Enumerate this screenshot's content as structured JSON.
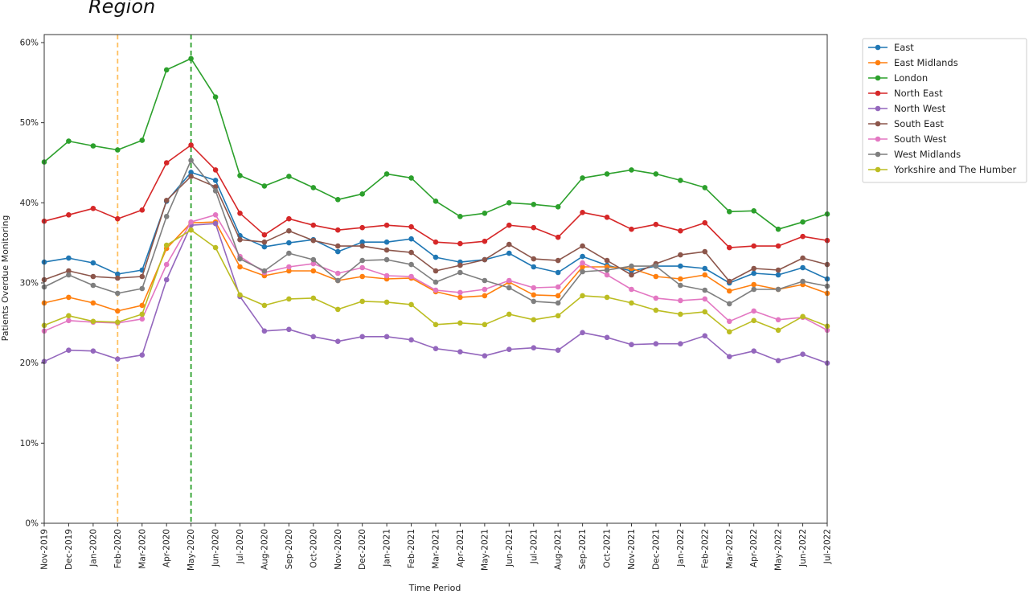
{
  "caption": "Region",
  "chart_data": {
    "type": "line",
    "title": "",
    "xlabel": "Time Period",
    "ylabel": "Patients Overdue Monitoring",
    "ylim": [
      0,
      61
    ],
    "yticks": [
      0,
      10,
      20,
      30,
      40,
      50,
      60
    ],
    "ytick_labels": [
      "0%",
      "10%",
      "20%",
      "30%",
      "40%",
      "50%",
      "60%"
    ],
    "y_unit": "%",
    "grid": false,
    "legend_position": "outside-right",
    "categories": [
      "Nov-2019",
      "Dec-2019",
      "Jan-2020",
      "Feb-2020",
      "Mar-2020",
      "Apr-2020",
      "May-2020",
      "Jun-2020",
      "Jul-2020",
      "Aug-2020",
      "Sep-2020",
      "Oct-2020",
      "Nov-2020",
      "Dec-2020",
      "Jan-2021",
      "Feb-2021",
      "Mar-2021",
      "Apr-2021",
      "May-2021",
      "Jun-2021",
      "Jul-2021",
      "Aug-2021",
      "Sep-2021",
      "Oct-2021",
      "Nov-2021",
      "Dec-2021",
      "Jan-2022",
      "Feb-2022",
      "Mar-2022",
      "Apr-2022",
      "May-2022",
      "Jun-2022",
      "Jul-2022"
    ],
    "vlines": [
      {
        "category": "Feb-2020",
        "color": "#ffbf5f",
        "style": "dashed"
      },
      {
        "category": "May-2020",
        "color": "#2ca02c",
        "style": "dashed"
      }
    ],
    "series": [
      {
        "name": "East",
        "color": "#1f77b4",
        "values": [
          32.6,
          33.1,
          32.5,
          31.1,
          31.6,
          40.2,
          43.8,
          42.8,
          35.9,
          34.5,
          35.0,
          35.4,
          33.9,
          35.1,
          35.1,
          35.5,
          33.2,
          32.6,
          32.9,
          33.7,
          32.0,
          31.3,
          33.3,
          32.2,
          31.5,
          32.1,
          32.1,
          31.8,
          30.0,
          31.2,
          31.0,
          31.9,
          30.5
        ]
      },
      {
        "name": "East Midlands",
        "color": "#ff7f0e",
        "values": [
          27.5,
          28.2,
          27.5,
          26.5,
          27.2,
          34.3,
          37.5,
          37.6,
          32.0,
          30.9,
          31.5,
          31.5,
          30.3,
          30.8,
          30.5,
          30.6,
          28.9,
          28.2,
          28.4,
          30.1,
          28.5,
          28.4,
          32.0,
          32.0,
          31.8,
          30.8,
          30.5,
          31.0,
          29.0,
          29.8,
          29.2,
          29.8,
          28.7
        ]
      },
      {
        "name": "London",
        "color": "#2ca02c",
        "values": [
          45.1,
          47.7,
          47.1,
          46.6,
          47.8,
          56.6,
          58.0,
          53.2,
          43.4,
          42.1,
          43.3,
          41.9,
          40.4,
          41.1,
          43.6,
          43.1,
          40.2,
          38.3,
          38.7,
          40.0,
          39.8,
          39.5,
          43.1,
          43.6,
          44.1,
          43.6,
          42.8,
          41.9,
          38.9,
          39.0,
          36.7,
          37.6,
          38.6
        ]
      },
      {
        "name": "North East",
        "color": "#d62728",
        "values": [
          37.7,
          38.5,
          39.3,
          38.0,
          39.1,
          45.0,
          47.2,
          44.1,
          38.7,
          36.0,
          38.0,
          37.2,
          36.6,
          36.9,
          37.2,
          37.0,
          35.1,
          34.9,
          35.2,
          37.2,
          36.9,
          35.7,
          38.8,
          38.2,
          36.7,
          37.3,
          36.5,
          37.5,
          34.4,
          34.6,
          34.6,
          35.8,
          35.3
        ]
      },
      {
        "name": "North West",
        "color": "#9467bd",
        "values": [
          20.2,
          21.6,
          21.5,
          20.5,
          21.0,
          30.4,
          37.2,
          37.4,
          28.3,
          24.0,
          24.2,
          23.3,
          22.7,
          23.3,
          23.3,
          22.9,
          21.8,
          21.4,
          20.9,
          21.7,
          21.9,
          21.6,
          23.8,
          23.2,
          22.3,
          22.4,
          22.4,
          23.4,
          20.8,
          21.5,
          20.3,
          21.1,
          20.0
        ]
      },
      {
        "name": "South East",
        "color": "#8c564b",
        "values": [
          30.4,
          31.5,
          30.8,
          30.6,
          30.8,
          40.3,
          43.3,
          42.0,
          35.4,
          35.1,
          36.5,
          35.3,
          34.6,
          34.6,
          34.1,
          33.8,
          31.5,
          32.2,
          32.9,
          34.8,
          33.0,
          32.8,
          34.6,
          32.8,
          31.0,
          32.4,
          33.5,
          33.9,
          30.2,
          31.8,
          31.6,
          33.1,
          32.3
        ]
      },
      {
        "name": "South West",
        "color": "#e377c2",
        "values": [
          24.0,
          25.3,
          25.1,
          25.0,
          25.5,
          32.3,
          37.6,
          38.5,
          33.3,
          31.3,
          32.0,
          32.4,
          31.2,
          31.9,
          30.9,
          30.8,
          29.1,
          28.8,
          29.2,
          30.3,
          29.4,
          29.5,
          32.5,
          31.0,
          29.2,
          28.1,
          27.8,
          28.0,
          25.2,
          26.5,
          25.4,
          25.7,
          24.1
        ]
      },
      {
        "name": "West Midlands",
        "color": "#7f7f7f",
        "values": [
          29.5,
          31.0,
          29.7,
          28.7,
          29.3,
          38.3,
          45.3,
          41.5,
          33.0,
          31.5,
          33.7,
          32.9,
          30.3,
          32.8,
          32.9,
          32.3,
          30.1,
          31.3,
          30.3,
          29.4,
          27.7,
          27.5,
          31.4,
          31.6,
          32.1,
          32.1,
          29.7,
          29.1,
          27.4,
          29.2,
          29.2,
          30.2,
          29.6
        ]
      },
      {
        "name": "Yorkshire and The Humber",
        "color": "#bcbd22",
        "values": [
          24.7,
          25.9,
          25.2,
          25.1,
          26.1,
          34.7,
          36.6,
          34.4,
          28.5,
          27.2,
          28.0,
          28.1,
          26.7,
          27.7,
          27.6,
          27.3,
          24.8,
          25.0,
          24.8,
          26.1,
          25.4,
          25.9,
          28.4,
          28.2,
          27.5,
          26.6,
          26.1,
          26.4,
          23.9,
          25.3,
          24.1,
          25.8,
          24.6
        ]
      }
    ]
  }
}
